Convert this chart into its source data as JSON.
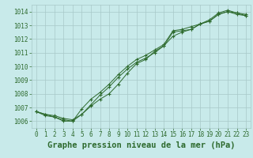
{
  "title": "Graphe pression niveau de la mer (hPa)",
  "bg_color": "#c8eaea",
  "grid_color": "#a8c8c8",
  "line_color": "#2d6a2d",
  "xlim": [
    -0.5,
    23.5
  ],
  "ylim": [
    1005.5,
    1014.5
  ],
  "xticks": [
    0,
    1,
    2,
    3,
    4,
    5,
    6,
    7,
    8,
    9,
    10,
    11,
    12,
    13,
    14,
    15,
    16,
    17,
    18,
    19,
    20,
    21,
    22,
    23
  ],
  "yticks": [
    1006,
    1007,
    1008,
    1009,
    1010,
    1011,
    1012,
    1013,
    1014
  ],
  "series1_x": [
    0,
    1,
    2,
    3,
    4,
    5,
    6,
    7,
    8,
    9,
    10,
    11,
    12,
    13,
    14,
    15,
    16,
    17,
    18,
    19,
    20,
    21,
    22,
    23
  ],
  "series1_y": [
    1006.7,
    1006.5,
    1006.4,
    1006.2,
    1006.1,
    1006.5,
    1007.1,
    1007.6,
    1008.0,
    1008.7,
    1009.5,
    1010.2,
    1010.5,
    1011.1,
    1011.5,
    1012.5,
    1012.6,
    1012.7,
    1013.1,
    1013.3,
    1013.8,
    1014.0,
    1013.8,
    1013.7
  ],
  "series2_x": [
    0,
    1,
    2,
    3,
    4,
    5,
    6,
    7,
    8,
    9,
    10,
    11,
    12,
    13,
    14,
    15,
    16,
    17,
    18,
    19,
    20,
    21,
    22,
    23
  ],
  "series2_y": [
    1006.7,
    1006.4,
    1006.3,
    1006.1,
    1006.0,
    1006.5,
    1007.2,
    1007.9,
    1008.5,
    1009.2,
    1009.8,
    1010.3,
    1010.6,
    1011.0,
    1011.5,
    1012.2,
    1012.5,
    1012.7,
    1013.1,
    1013.3,
    1013.8,
    1014.0,
    1013.9,
    1013.8
  ],
  "series3_x": [
    0,
    1,
    2,
    3,
    4,
    5,
    6,
    7,
    8,
    9,
    10,
    11,
    12,
    13,
    14,
    15,
    16,
    17,
    18,
    19,
    20,
    21,
    22,
    23
  ],
  "series3_y": [
    1006.7,
    1006.5,
    1006.3,
    1006.0,
    1006.0,
    1006.9,
    1007.6,
    1008.1,
    1008.7,
    1009.4,
    1010.0,
    1010.5,
    1010.8,
    1011.2,
    1011.6,
    1012.6,
    1012.7,
    1012.9,
    1013.1,
    1013.4,
    1013.9,
    1014.1,
    1013.9,
    1013.7
  ],
  "ylabel_fontsize": 5.5,
  "xlabel_fontsize": 7.5,
  "tick_fontsize": 5.5
}
